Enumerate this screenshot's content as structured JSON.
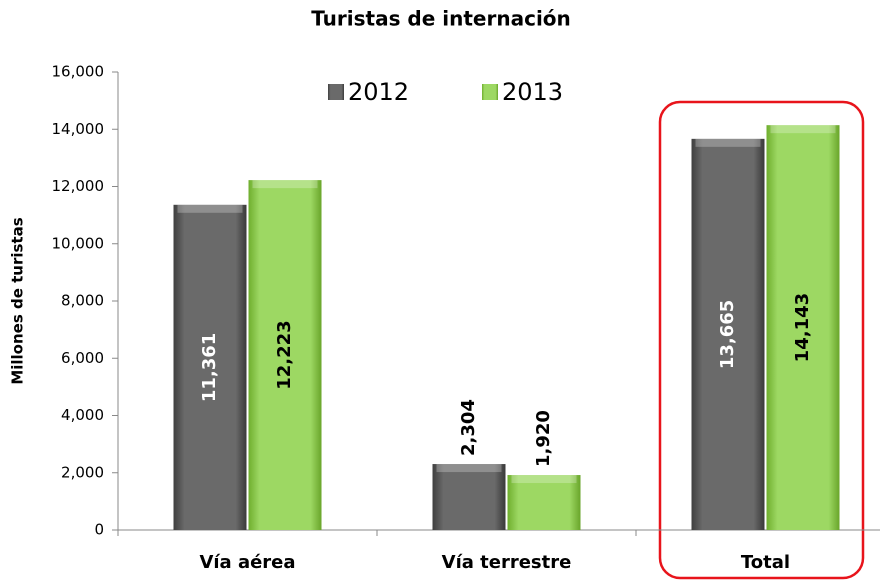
{
  "chart_data": {
    "type": "bar",
    "title": "Turistas de internación",
    "y_label": "Millones de turistas",
    "categories": [
      "Vía aérea",
      "Vía terrestre",
      "Total"
    ],
    "series": [
      {
        "name": "2012",
        "color": "#5f5f5f",
        "label_color": "#ffffff",
        "values": [
          11361,
          2304,
          13665
        ],
        "value_labels": [
          "11,361",
          "2,304",
          "13,665"
        ]
      },
      {
        "name": "2013",
        "color": "#92d050",
        "label_color": "#000000",
        "values": [
          12223,
          1920,
          14143
        ],
        "value_labels": [
          "12,223",
          "1,920",
          "14,143"
        ]
      }
    ],
    "ylim": [
      0,
      16000
    ],
    "yticks": [
      0,
      {
        "value": 2000,
        "label": "2,000"
      },
      {
        "value": 4000,
        "label": "4,000"
      },
      {
        "value": 6000,
        "label": "6,000"
      },
      {
        "value": 8000,
        "label": "8,000"
      },
      {
        "value": 10000,
        "label": "10,000"
      },
      {
        "value": 12000,
        "label": "12,000"
      },
      {
        "value": 14000,
        "label": "14,000"
      },
      {
        "value": 16000,
        "label": "16,000"
      }
    ],
    "grid": false,
    "legend": "top"
  }
}
